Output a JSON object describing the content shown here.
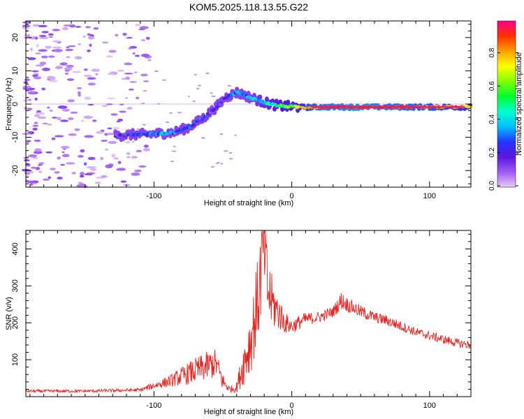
{
  "title": "KOM5.2025.118.13.55.G22",
  "chart_data": [
    {
      "type": "heatmap",
      "xlabel": "Height of straight line (km)",
      "ylabel": "Frequency (Hz)",
      "xlim": [
        -193,
        130
      ],
      "ylim": [
        -25,
        25
      ],
      "xticks": [
        -100,
        0,
        100
      ],
      "yticks": [
        20,
        10,
        0,
        -10,
        -20
      ],
      "colorbar": {
        "label": "Normalized spectral amplitude",
        "range": [
          0,
          1
        ],
        "ticks": [
          "0.0",
          "0.2",
          "0.4",
          "0.6",
          "0.8"
        ],
        "colors": [
          "#e8c8f8",
          "#9f5af2",
          "#5a16e0",
          "#2436ff",
          "#00bfff",
          "#00ffcc",
          "#00ff30",
          "#80ff00",
          "#ffff00",
          "#ffa000",
          "#ff3000",
          "#ff0090"
        ]
      },
      "track": {
        "x": [
          -128,
          -115,
          -100,
          -85,
          -75,
          -65,
          -55,
          -48,
          -40,
          -30,
          -20,
          -10,
          0,
          10,
          20,
          40,
          60,
          80,
          100,
          120,
          130
        ],
        "y": [
          -9.5,
          -9.2,
          -9.0,
          -8.5,
          -7,
          -4.5,
          -1,
          2,
          3.5,
          2,
          0.5,
          -0.5,
          -0.8,
          -1.0,
          -0.9,
          -0.9,
          -0.9,
          -0.9,
          -0.9,
          -0.9,
          -0.9
        ],
        "amplitude": [
          0.12,
          0.2,
          0.3,
          0.3,
          0.28,
          0.22,
          0.15,
          0.2,
          0.3,
          0.35,
          0.45,
          0.5,
          0.6,
          0.8,
          0.9,
          0.95,
          0.95,
          0.9,
          0.85,
          0.8,
          0.7
        ]
      }
    },
    {
      "type": "line",
      "xlabel": "Height of straight line (km)",
      "ylabel": "SNR (v/v)",
      "xlim": [
        -193,
        130
      ],
      "ylim": [
        0,
        450
      ],
      "xticks": [
        -100,
        0,
        100
      ],
      "yticks": [
        400,
        300,
        200,
        100
      ],
      "series": [
        {
          "color": "#e8221e",
          "envelope_x": [
            -193,
            -150,
            -110,
            -100,
            -90,
            -80,
            -70,
            -60,
            -55,
            -50,
            -45,
            -40,
            -35,
            -30,
            -25,
            -22,
            -20,
            -18,
            -15,
            -12,
            -10,
            -5,
            0,
            5,
            10,
            20,
            30,
            36,
            40,
            50,
            60,
            70,
            80,
            90,
            100,
            110,
            120,
            130
          ],
          "envelope_y": [
            15,
            15,
            18,
            30,
            40,
            55,
            70,
            85,
            90,
            40,
            20,
            25,
            90,
            150,
            250,
            350,
            420,
            300,
            260,
            240,
            230,
            200,
            190,
            200,
            210,
            215,
            230,
            260,
            250,
            230,
            215,
            205,
            190,
            175,
            165,
            155,
            145,
            140
          ],
          "noise_amplitude": [
            4,
            4,
            5,
            10,
            15,
            25,
            35,
            40,
            40,
            25,
            8,
            15,
            60,
            90,
            120,
            140,
            150,
            120,
            80,
            60,
            50,
            30,
            20,
            20,
            18,
            15,
            15,
            25,
            20,
            18,
            15,
            15,
            14,
            12,
            12,
            12,
            12,
            12
          ]
        }
      ]
    }
  ]
}
